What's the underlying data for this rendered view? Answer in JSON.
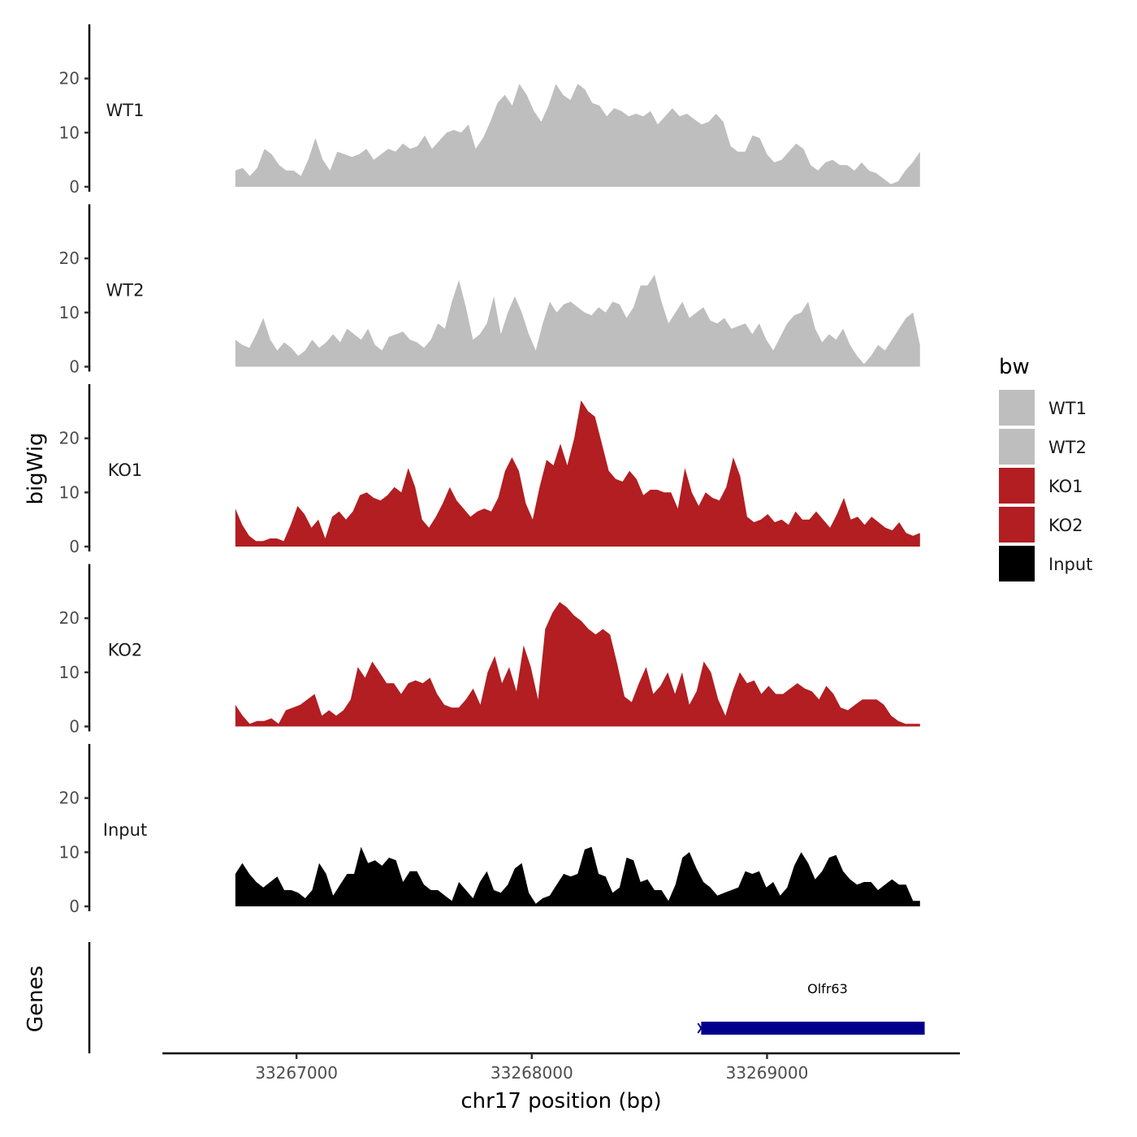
{
  "chart_data": {
    "type": "area",
    "y_axis_title": "bigWig",
    "x_axis_title": "chr17 position (bp)",
    "genes_panel_title": "Genes",
    "legend": {
      "title": "bw",
      "entries": [
        {
          "label": "WT1",
          "color": "#bebebe"
        },
        {
          "label": "WT2",
          "color": "#bebebe"
        },
        {
          "label": "KO1",
          "color": "#b21e21"
        },
        {
          "label": "KO2",
          "color": "#b21e21"
        },
        {
          "label": "Input",
          "color": "#000000"
        }
      ]
    },
    "ylim": [
      0,
      30
    ],
    "y_ticks": [
      0,
      10,
      20
    ],
    "y_tick_labels": [
      "0",
      "10",
      "20"
    ],
    "xlim": [
      33266430,
      33269820
    ],
    "x_ticks": [
      33267000,
      33268000,
      33269000
    ],
    "x_tick_labels": [
      "33267000",
      "33268000",
      "33269000"
    ],
    "x_start": 33266740,
    "x_end": 33269650,
    "tracks": [
      {
        "name": "WT1",
        "color": "#bebebe",
        "values": [
          3,
          3.5,
          2,
          3.5,
          7,
          6,
          4,
          3,
          3,
          2,
          5,
          9,
          5,
          3,
          6.5,
          6,
          5.5,
          6,
          7,
          5,
          6,
          7,
          6.5,
          8,
          7,
          7.5,
          9.5,
          7,
          8.5,
          10,
          10.5,
          10,
          11.5,
          7,
          9,
          12,
          15.5,
          17,
          15,
          19,
          17,
          14,
          12,
          15,
          19,
          17,
          16,
          19,
          18,
          15.5,
          15,
          13,
          14.5,
          14,
          13,
          13.5,
          13,
          14,
          11.5,
          13,
          14.5,
          13,
          13.5,
          12.5,
          11.5,
          12,
          13.5,
          12,
          7.5,
          6.5,
          6.5,
          9.5,
          9,
          6,
          4.5,
          5,
          6.5,
          8,
          7,
          4,
          3,
          4.5,
          5,
          4,
          4,
          3,
          4.5,
          3,
          2.5,
          1.5,
          0.5,
          1,
          3,
          4.5,
          6.5
        ]
      },
      {
        "name": "WT2",
        "color": "#bebebe",
        "values": [
          5,
          4,
          3.5,
          6,
          9,
          5,
          3,
          4.5,
          3.5,
          2,
          3,
          5,
          3.5,
          4.5,
          6,
          4.5,
          7,
          6,
          5,
          7,
          4,
          3,
          5.5,
          6,
          6.5,
          5,
          4.5,
          3.5,
          5,
          8,
          7,
          12,
          16,
          11,
          5,
          6,
          8,
          13,
          6,
          10,
          13,
          10,
          6,
          3,
          8,
          12,
          10,
          11.5,
          12,
          11,
          10,
          9.5,
          11,
          10,
          12,
          11.5,
          9,
          11,
          15,
          15,
          17,
          12,
          8,
          10,
          12,
          9,
          10,
          11,
          8.5,
          8,
          9,
          7,
          7.5,
          8,
          6,
          8,
          5,
          3,
          5.5,
          8,
          9.5,
          10,
          12,
          7,
          4.5,
          6,
          5,
          7,
          4,
          2,
          0.5,
          2,
          4,
          3,
          5,
          7,
          9,
          10,
          4
        ]
      },
      {
        "name": "KO1",
        "color": "#b21e21",
        "values": [
          7,
          4,
          2,
          1,
          1,
          1.5,
          1.5,
          1,
          4,
          7.5,
          6,
          3.5,
          5,
          1.5,
          5.5,
          6.5,
          5,
          6.5,
          9.5,
          10,
          9,
          8.5,
          9.5,
          11,
          10,
          14.5,
          11,
          5,
          3.5,
          5.5,
          8,
          11,
          8.5,
          7,
          5.5,
          6.5,
          7,
          6.5,
          9,
          14,
          16.5,
          14,
          8,
          5,
          11,
          16,
          15,
          19,
          15,
          20,
          27,
          25,
          24,
          19,
          14,
          12.5,
          12,
          14,
          12.5,
          9.5,
          10.5,
          10.5,
          10,
          10,
          7,
          14.5,
          10,
          7.5,
          10,
          9,
          8.5,
          11,
          16.5,
          13,
          5.5,
          4.5,
          5,
          6,
          4.5,
          5,
          4,
          6.5,
          5,
          5,
          6.5,
          5,
          3.5,
          6,
          9,
          5,
          5.5,
          4,
          5.5,
          4.5,
          3.5,
          3,
          4.5,
          2.5,
          2,
          2.5
        ]
      },
      {
        "name": "KO2",
        "color": "#b21e21",
        "values": [
          4,
          2,
          0.5,
          1,
          1,
          1.5,
          0.5,
          3,
          3.5,
          4,
          5,
          6,
          2,
          3,
          2,
          3,
          5,
          11,
          9,
          12,
          10,
          8,
          8,
          6,
          8,
          8.5,
          8,
          9,
          6,
          4,
          3.5,
          3.5,
          5,
          7,
          4,
          10,
          13,
          8,
          11,
          6.5,
          15,
          11,
          5,
          18,
          21,
          23,
          22,
          20.5,
          19.5,
          18,
          17,
          18,
          17,
          11.5,
          5.5,
          4.5,
          8,
          11,
          6,
          7.5,
          10,
          6,
          10,
          4,
          6.5,
          12,
          10,
          5,
          2,
          6.5,
          10,
          8,
          8.5,
          6,
          7.5,
          6,
          6,
          7,
          8,
          7,
          6.5,
          5,
          7.5,
          6,
          3.5,
          3,
          4,
          5,
          5,
          5,
          4,
          2,
          1,
          0.5,
          0.5,
          0.5
        ]
      },
      {
        "name": "Input",
        "color": "#000000",
        "values": [
          6,
          8,
          6,
          4.5,
          3.5,
          4.5,
          5.5,
          3,
          3,
          2.5,
          1.5,
          3,
          8,
          6,
          2,
          4,
          6,
          6,
          11,
          8,
          8.5,
          7.5,
          9,
          8.5,
          4.5,
          6.5,
          6.5,
          4,
          3,
          3,
          2,
          1,
          4.5,
          3,
          1.5,
          4.5,
          6.5,
          3,
          2.5,
          4,
          7,
          8,
          2.5,
          0.5,
          1.5,
          2,
          4,
          6,
          5.5,
          6,
          10.5,
          11,
          6,
          5.5,
          2.5,
          3.5,
          9,
          8.5,
          4.5,
          5,
          3,
          3,
          1,
          4,
          9,
          10,
          7,
          4.5,
          3.5,
          2,
          2.5,
          3,
          3.5,
          6.5,
          6,
          6.5,
          3.5,
          4.5,
          2,
          3.5,
          7.5,
          10,
          8,
          5,
          6.5,
          9,
          9.5,
          6.5,
          5,
          4,
          4.5,
          4.5,
          3,
          4,
          5,
          4,
          4,
          1,
          1
        ]
      }
    ],
    "genes": [
      {
        "name": "Olfr63",
        "start": 33268720,
        "end": 33269670,
        "strand": "-",
        "color": "#00008b"
      }
    ]
  }
}
